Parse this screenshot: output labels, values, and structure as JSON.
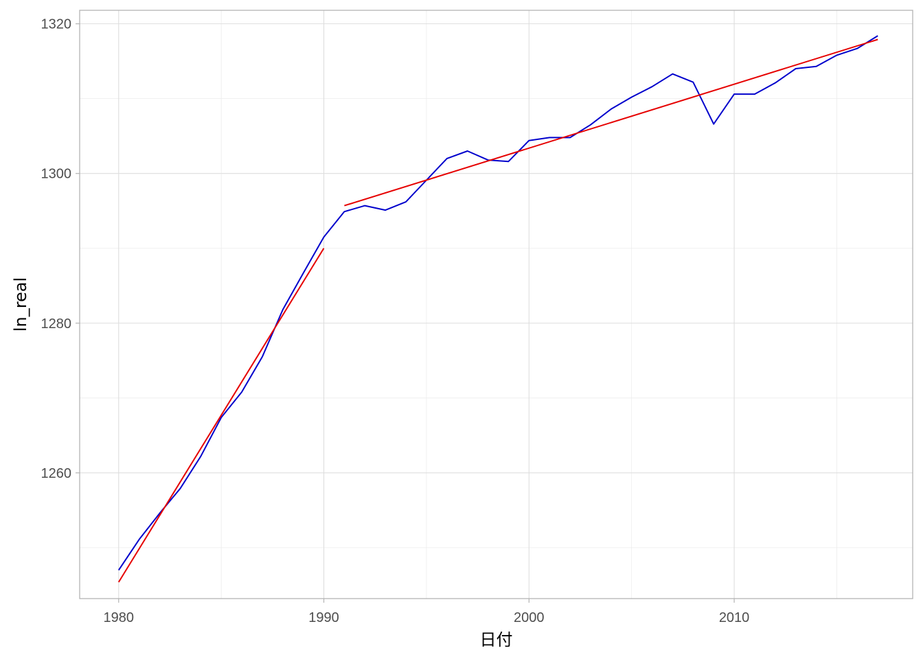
{
  "chart_data": {
    "type": "line",
    "title": "",
    "xlabel": "日付",
    "ylabel": "ln_real",
    "xlim": [
      1978.1,
      2018.7
    ],
    "ylim": [
      1243.2,
      1321.8
    ],
    "x_ticks": [
      1980,
      1990,
      2000,
      2010
    ],
    "y_ticks": [
      1260,
      1280,
      1300,
      1320
    ],
    "grid": true,
    "legend": "none",
    "series": [
      {
        "color": "#0000cc",
        "x": [
          1980,
          1981,
          1982,
          1983,
          1984,
          1985,
          1986,
          1987,
          1988,
          1989,
          1990,
          1991,
          1992,
          1993,
          1994,
          1995,
          1996,
          1997,
          1998,
          1999,
          2000,
          2001,
          2002,
          2003,
          2004,
          2005,
          2006,
          2007,
          2008,
          2009,
          2010,
          2011,
          2012,
          2013,
          2014,
          2015,
          2016,
          2017
        ],
        "values": [
          1247.0,
          1251.1,
          1254.6,
          1257.9,
          1262.2,
          1267.4,
          1270.8,
          1275.5,
          1281.8,
          1286.7,
          1291.5,
          1294.9,
          1295.7,
          1295.1,
          1296.2,
          1299.1,
          1302.0,
          1303.0,
          1301.8,
          1301.6,
          1304.4,
          1304.8,
          1304.8,
          1306.5,
          1308.6,
          1310.2,
          1311.6,
          1313.3,
          1312.2,
          1306.6,
          1310.6,
          1310.6,
          1312.1,
          1314.0,
          1314.3,
          1315.8,
          1316.7,
          1318.4
        ]
      },
      {
        "color": "#e60000",
        "x": [
          1980,
          1990
        ],
        "values": [
          1245.4,
          1290.0
        ]
      },
      {
        "color": "#e60000",
        "x": [
          1991,
          2017
        ],
        "values": [
          1295.7,
          1317.9
        ]
      }
    ]
  }
}
